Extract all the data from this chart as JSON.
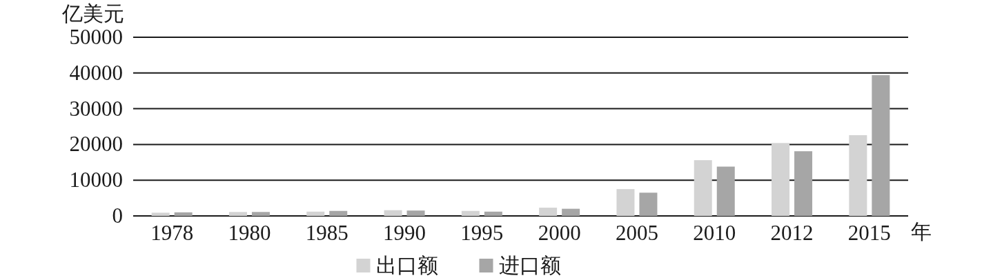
{
  "chart_data": {
    "type": "bar",
    "ylabel": "亿美元",
    "xlabel": "年",
    "categories": [
      "1978",
      "1980",
      "1985",
      "1990",
      "1995",
      "2000",
      "2005",
      "2010",
      "2012",
      "2015"
    ],
    "series": [
      {
        "name": "出口额",
        "color": "#d3d3d3",
        "values": [
          900,
          1100,
          1200,
          1600,
          1400,
          2300,
          7500,
          15600,
          20400,
          22600
        ]
      },
      {
        "name": "进口额",
        "color": "#a6a6a6",
        "values": [
          1000,
          1100,
          1400,
          1500,
          1200,
          2000,
          6500,
          13800,
          18100,
          39400
        ]
      }
    ],
    "ylim": [
      0,
      50000
    ],
    "yticks": [
      0,
      10000,
      20000,
      30000,
      40000,
      50000
    ],
    "grid": "y",
    "legend": "bottom"
  }
}
